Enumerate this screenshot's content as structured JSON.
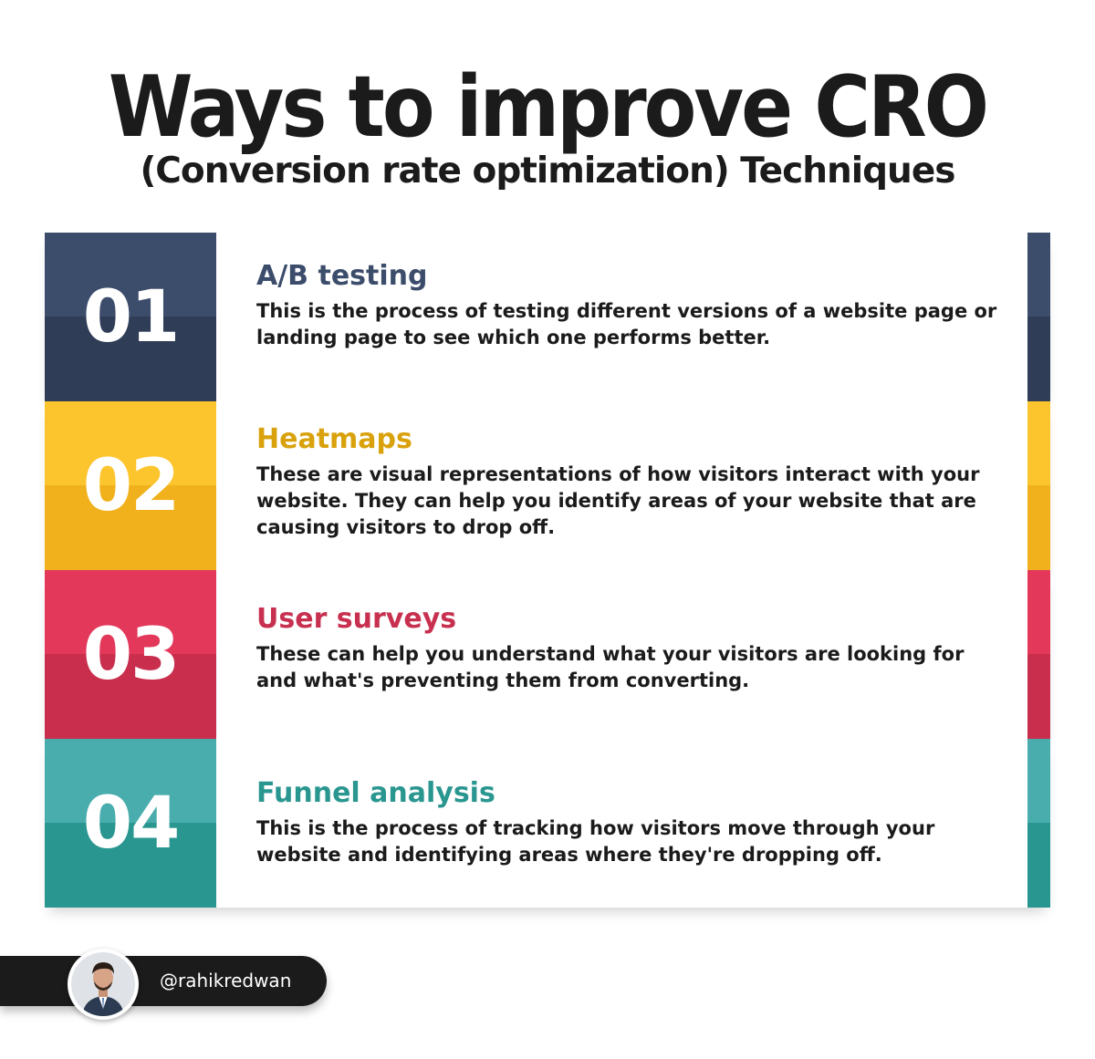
{
  "title": "Ways to improve CRO",
  "subtitle": "(Conversion rate optimization) Techniques",
  "items": [
    {
      "number": "01",
      "heading": "A/B testing",
      "description": "This is the process of testing different versions of a website page or landing page to see which one performs better.",
      "color_top": "#3c4d6b",
      "color_bottom": "#2f3d57",
      "heading_color": "#3c4d6b"
    },
    {
      "number": "02",
      "heading": "Heatmaps",
      "description": "These are visual representations of how visitors interact with your website. They can help you identify areas of your website that are causing visitors to drop off.",
      "color_top": "#fcc52e",
      "color_bottom": "#f0b11c",
      "heading_color": "#d9a20c"
    },
    {
      "number": "03",
      "heading": "User surveys",
      "description": "These can help you understand what your visitors are looking for and what's preventing them from converting.",
      "color_top": "#e3385a",
      "color_bottom": "#c92f4d",
      "heading_color": "#c8304f"
    },
    {
      "number": "04",
      "heading": "Funnel analysis",
      "description": "This is the process of tracking how visitors move through your website and identifying areas where they're dropping off.",
      "color_top": "#49adad",
      "color_bottom": "#2a9690",
      "heading_color": "#2a9690"
    }
  ],
  "author": {
    "handle": "@rahikredwan",
    "avatar_icon": "user-avatar-icon"
  }
}
